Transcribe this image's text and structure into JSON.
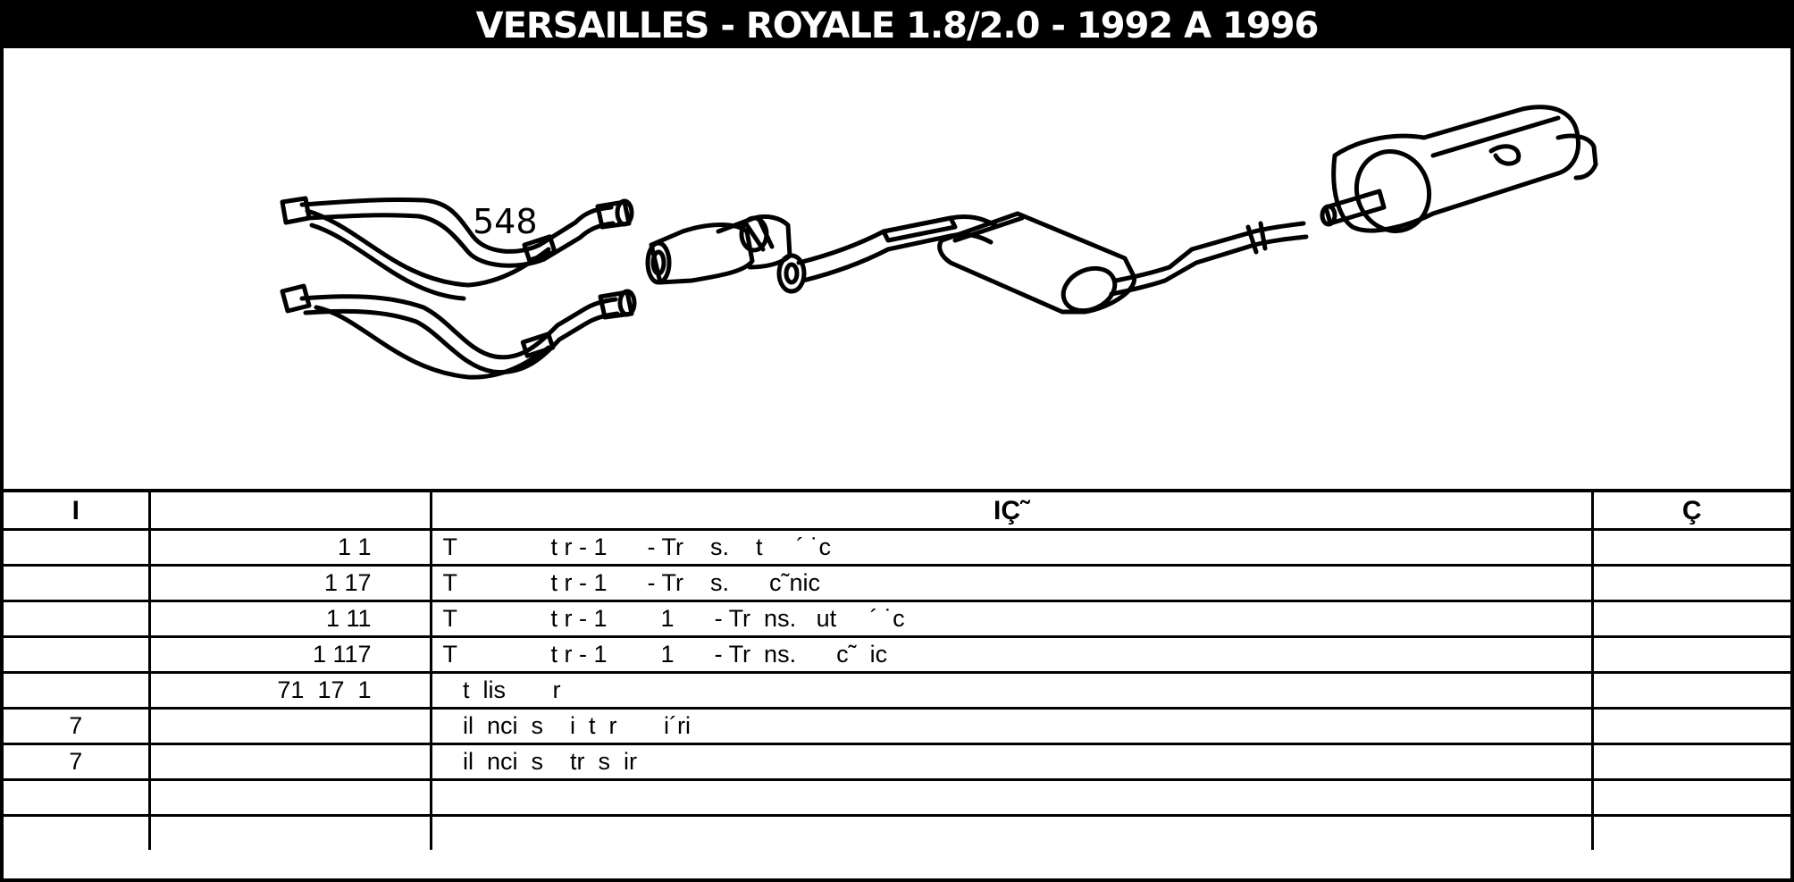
{
  "title": "VERSAILLES - ROYALE 1.8/2.0 - 1992 A 1996",
  "diagram": {
    "part_number": "548"
  },
  "table": {
    "headers": [
      "I",
      "",
      "IÇ˜",
      "Ç"
    ],
    "rows": [
      {
        "ref": "",
        "code": "1 1",
        "desc": "T              t r - 1      - Tr    s.    t     ´ ˙c",
        "extra": ""
      },
      {
        "ref": "",
        "code": "1 17",
        "desc": "T              t r - 1      - Tr    s.      c˜nic",
        "extra": ""
      },
      {
        "ref": "",
        "code": "1 11",
        "desc": "T              t r - 1        1      - Tr  ns.   ut     ´ ˙c",
        "extra": ""
      },
      {
        "ref": "",
        "code": "1 117",
        "desc": "T              t r - 1        1      - Tr  ns.      c˜  ic",
        "extra": ""
      },
      {
        "ref": "",
        "code": "71  17  1",
        "desc": "   t  lis       r",
        "extra": ""
      },
      {
        "ref": "7",
        "code": "",
        "desc": "   il  nci  s    i  t  r       i´ri",
        "extra": ""
      },
      {
        "ref": "7",
        "code": "",
        "desc": "   il  nci  s    tr  s  ir",
        "extra": ""
      },
      {
        "ref": "",
        "code": "",
        "desc": "",
        "extra": ""
      },
      {
        "ref": "",
        "code": "",
        "desc": "",
        "extra": ""
      }
    ]
  }
}
